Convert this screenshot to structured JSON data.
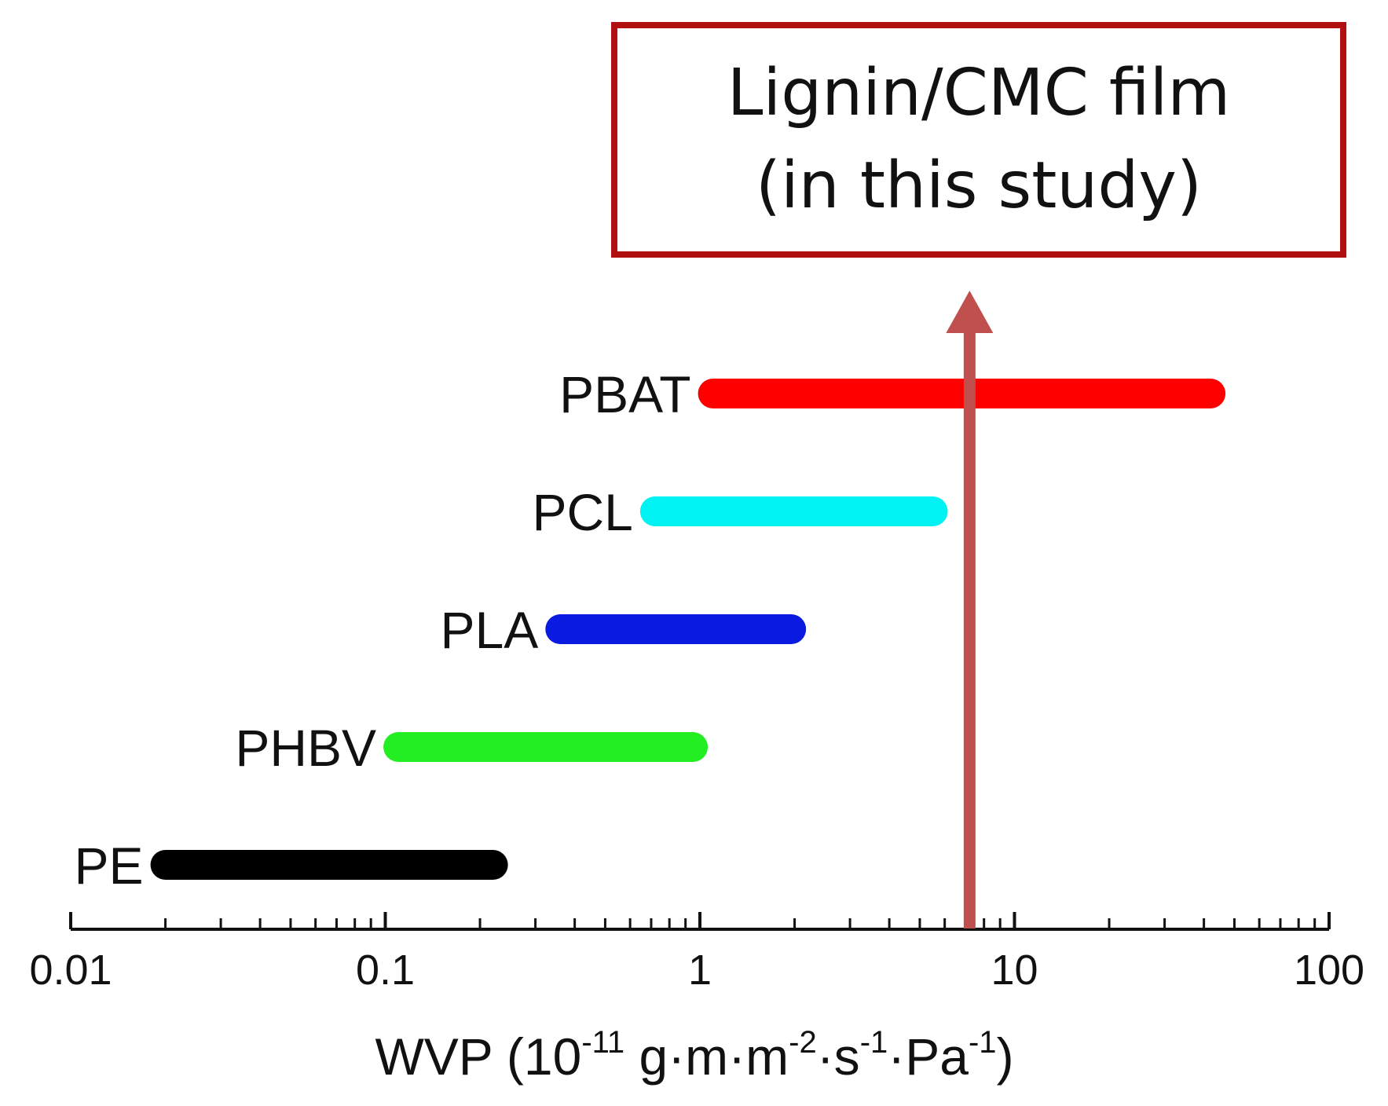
{
  "chart_data": {
    "type": "range_bar",
    "x_scale": "log",
    "xlim": [
      0.01,
      100
    ],
    "x_ticks": [
      "0.01",
      "0.1",
      "1",
      "10",
      "100"
    ],
    "xlabel": {
      "base": "WVP (10",
      "exp1": "-11",
      "mid1": " g·m·m",
      "exp2": "-2",
      "mid2": "·s",
      "exp3": "-1",
      "mid3": "·Pa",
      "exp4": "-1",
      "end": ")"
    },
    "series": [
      {
        "name": "PE",
        "min": 0.02,
        "max": 0.22,
        "color": "#000000"
      },
      {
        "name": "PHBV",
        "min": 0.11,
        "max": 0.95,
        "color": "#22ee22"
      },
      {
        "name": "PLA",
        "min": 0.36,
        "max": 1.95,
        "color": "#0a1ae0"
      },
      {
        "name": "PCL",
        "min": 0.72,
        "max": 5.5,
        "color": "#00f2f2"
      },
      {
        "name": "PBAT",
        "min": 1.1,
        "max": 42,
        "color": "#ff0000"
      }
    ],
    "marker": {
      "value": 7.2,
      "color": "#c0504d"
    }
  },
  "callout": {
    "line1": "Lignin/CMC film",
    "line2": "(in this study)",
    "border_color": "#b01010"
  }
}
